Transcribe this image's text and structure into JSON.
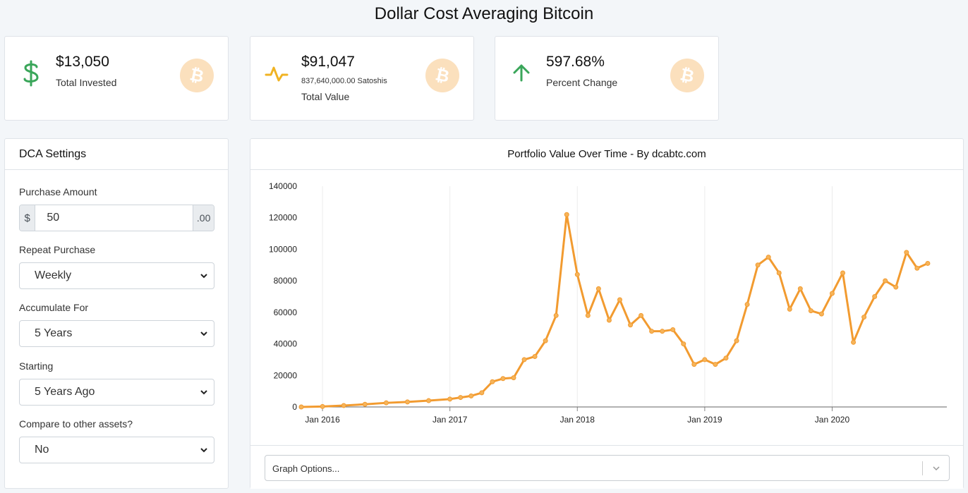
{
  "page": {
    "title": "Dollar Cost Averaging Bitcoin"
  },
  "stats": {
    "invested": {
      "value": "$13,050",
      "label": "Total Invested",
      "icon": "dollar-sign-icon",
      "color": "#3aa65a"
    },
    "total_value": {
      "value": "$91,047",
      "sub": "837,640,000.00 Satoshis",
      "label": "Total Value",
      "icon": "activity-pulse-icon",
      "color": "#f0b323"
    },
    "percent": {
      "value": "597.68%",
      "label": "Percent Change",
      "icon": "arrow-up-icon",
      "color": "#3aa65a"
    },
    "coin_icon": "bitcoin-icon",
    "coin_color": "#fbe0bd"
  },
  "settings": {
    "title": "DCA Settings",
    "purchase_amount": {
      "label": "Purchase Amount",
      "prefix": "$",
      "value": "50",
      "suffix": ".00"
    },
    "repeat": {
      "label": "Repeat Purchase",
      "value": "Weekly"
    },
    "accumulate": {
      "label": "Accumulate For",
      "value": "5 Years"
    },
    "starting": {
      "label": "Starting",
      "value": "5 Years Ago"
    },
    "compare": {
      "label": "Compare to other assets?",
      "value": "No"
    }
  },
  "chart": {
    "title": "Portfolio Value Over Time - By dcabtc.com",
    "graph_options_placeholder": "Graph Options..."
  },
  "chart_data": {
    "type": "line",
    "title": "Portfolio Value Over Time - By dcabtc.com",
    "xlabel": "",
    "ylabel": "",
    "ylim": [
      0,
      140000
    ],
    "yticks": [
      "0",
      "20000",
      "40000",
      "60000",
      "80000",
      "100000",
      "120000",
      "140000"
    ],
    "xticks": [
      "Jan 2016",
      "Jan 2017",
      "Jan 2018",
      "Jan 2019",
      "Jan 2020"
    ],
    "grid": "vertical",
    "color": "#f29b30",
    "series": [
      {
        "x": [
          "2015-11",
          "2016-01",
          "2016-03",
          "2016-05",
          "2016-07",
          "2016-09",
          "2016-11",
          "2017-01",
          "2017-02",
          "2017-03",
          "2017-04",
          "2017-05",
          "2017-06",
          "2017-07",
          "2017-08",
          "2017-09",
          "2017-10",
          "2017-11",
          "2017-12",
          "2018-01",
          "2018-02",
          "2018-03",
          "2018-04",
          "2018-05",
          "2018-06",
          "2018-07",
          "2018-08",
          "2018-09",
          "2018-10",
          "2018-11",
          "2018-12",
          "2019-01",
          "2019-02",
          "2019-03",
          "2019-04",
          "2019-05",
          "2019-06",
          "2019-07",
          "2019-08",
          "2019-09",
          "2019-10",
          "2019-11",
          "2019-12",
          "2020-01",
          "2020-02",
          "2020-03",
          "2020-04",
          "2020-05",
          "2020-06",
          "2020-07",
          "2020-08",
          "2020-09",
          "2020-10"
        ],
        "values": [
          0,
          300,
          900,
          1700,
          2600,
          3200,
          4000,
          5000,
          6000,
          7000,
          9000,
          16000,
          18000,
          18500,
          30000,
          32000,
          42000,
          58000,
          122000,
          84000,
          58000,
          75000,
          55000,
          68000,
          52000,
          58000,
          48000,
          48000,
          49000,
          40000,
          27000,
          30000,
          27000,
          31000,
          42000,
          65000,
          90000,
          95000,
          85000,
          62000,
          75000,
          61000,
          59000,
          72000,
          85000,
          41000,
          57000,
          70000,
          80000,
          76000,
          98000,
          88000,
          91047
        ]
      }
    ]
  }
}
